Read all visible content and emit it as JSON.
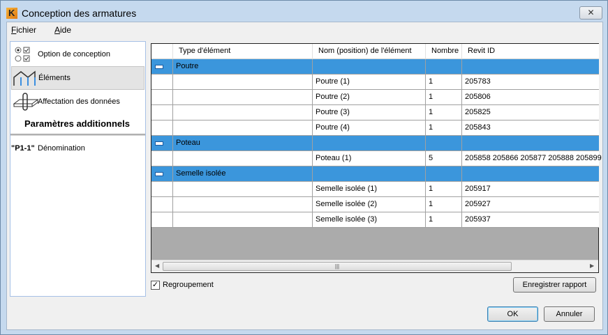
{
  "window": {
    "title": "Conception des armatures",
    "close_label": "✕"
  },
  "menu": [
    {
      "label": "Fichier",
      "accel": "F",
      "rest": "ichier"
    },
    {
      "label": "Aide",
      "accel": "A",
      "rest": "ide"
    }
  ],
  "sidebar": {
    "items": [
      {
        "label": "Option de conception",
        "icon": "radio-checkbox-icon"
      },
      {
        "label": "Éléments",
        "icon": "structure-frame-icon",
        "selected": true
      },
      {
        "label": "Affectation des données",
        "icon": "rebar-slab-icon"
      }
    ],
    "section_title": "Paramètres additionnels",
    "extra_items": [
      {
        "label": "Dénomination",
        "icon_text": "\"P1-1\""
      }
    ]
  },
  "grid": {
    "columns": [
      "",
      "Type d'élément",
      "Nom (position) de l'élément",
      "Nombre",
      "Revit ID"
    ],
    "groups": [
      {
        "name": "Poutre",
        "rows": [
          {
            "name": "Poutre (1)",
            "count": "1",
            "revit_id": "205783"
          },
          {
            "name": "Poutre (2)",
            "count": "1",
            "revit_id": "205806"
          },
          {
            "name": "Poutre (3)",
            "count": "1",
            "revit_id": "205825"
          },
          {
            "name": "Poutre (4)",
            "count": "1",
            "revit_id": "205843"
          }
        ]
      },
      {
        "name": "Poteau",
        "rows": [
          {
            "name": "Poteau (1)",
            "count": "5",
            "revit_id": "205858 205866 205877 205888 205899"
          }
        ]
      },
      {
        "name": "Semelle isolée",
        "rows": [
          {
            "name": "Semelle isolée (1)",
            "count": "1",
            "revit_id": "205917"
          },
          {
            "name": "Semelle isolée (2)",
            "count": "1",
            "revit_id": "205927"
          },
          {
            "name": "Semelle isolée (3)",
            "count": "1",
            "revit_id": "205937"
          }
        ]
      }
    ],
    "group_color": "#3b96dc"
  },
  "grouping": {
    "label": "Regroupement",
    "checked": true
  },
  "buttons": {
    "save_report": "Enregistrer rapport",
    "ok": "OK",
    "cancel": "Annuler"
  }
}
